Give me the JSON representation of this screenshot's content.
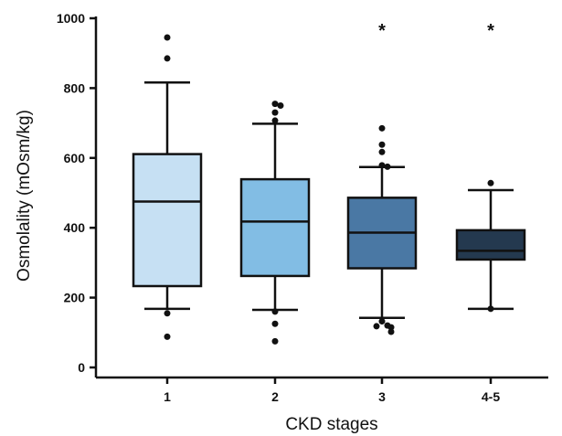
{
  "chart_data": {
    "type": "box",
    "xlabel": "CKD stages",
    "ylabel": "Osmolality (mOsm/kg)",
    "ylim": [
      0,
      1000
    ],
    "yticks": [
      0,
      200,
      400,
      600,
      800,
      1000
    ],
    "grid": false,
    "categories": [
      "1",
      "2",
      "3",
      "4-5"
    ],
    "colors": [
      "#c6e0f3",
      "#82bde4",
      "#4a78a4",
      "#24394f"
    ],
    "significance": [
      "",
      "",
      "*",
      "*"
    ],
    "boxes": [
      {
        "category": "1",
        "whisker_low": 168,
        "q1": 233,
        "median": 475,
        "q3": 611,
        "whisker_high": 816,
        "outliers": [
          945,
          885,
          155,
          88
        ]
      },
      {
        "category": "2",
        "whisker_low": 165,
        "q1": 262,
        "median": 418,
        "q3": 539,
        "whisker_high": 698,
        "outliers": [
          755,
          750,
          730,
          707,
          160,
          125,
          75
        ]
      },
      {
        "category": "3",
        "whisker_low": 142,
        "q1": 284,
        "median": 386,
        "q3": 486,
        "whisker_high": 574,
        "outliers": [
          685,
          638,
          617,
          579,
          575,
          132,
          120,
          118,
          115,
          102
        ]
      },
      {
        "category": "4-5",
        "whisker_low": 168,
        "q1": 309,
        "median": 334,
        "q3": 393,
        "whisker_high": 508,
        "outliers": [
          528,
          168
        ]
      }
    ]
  }
}
